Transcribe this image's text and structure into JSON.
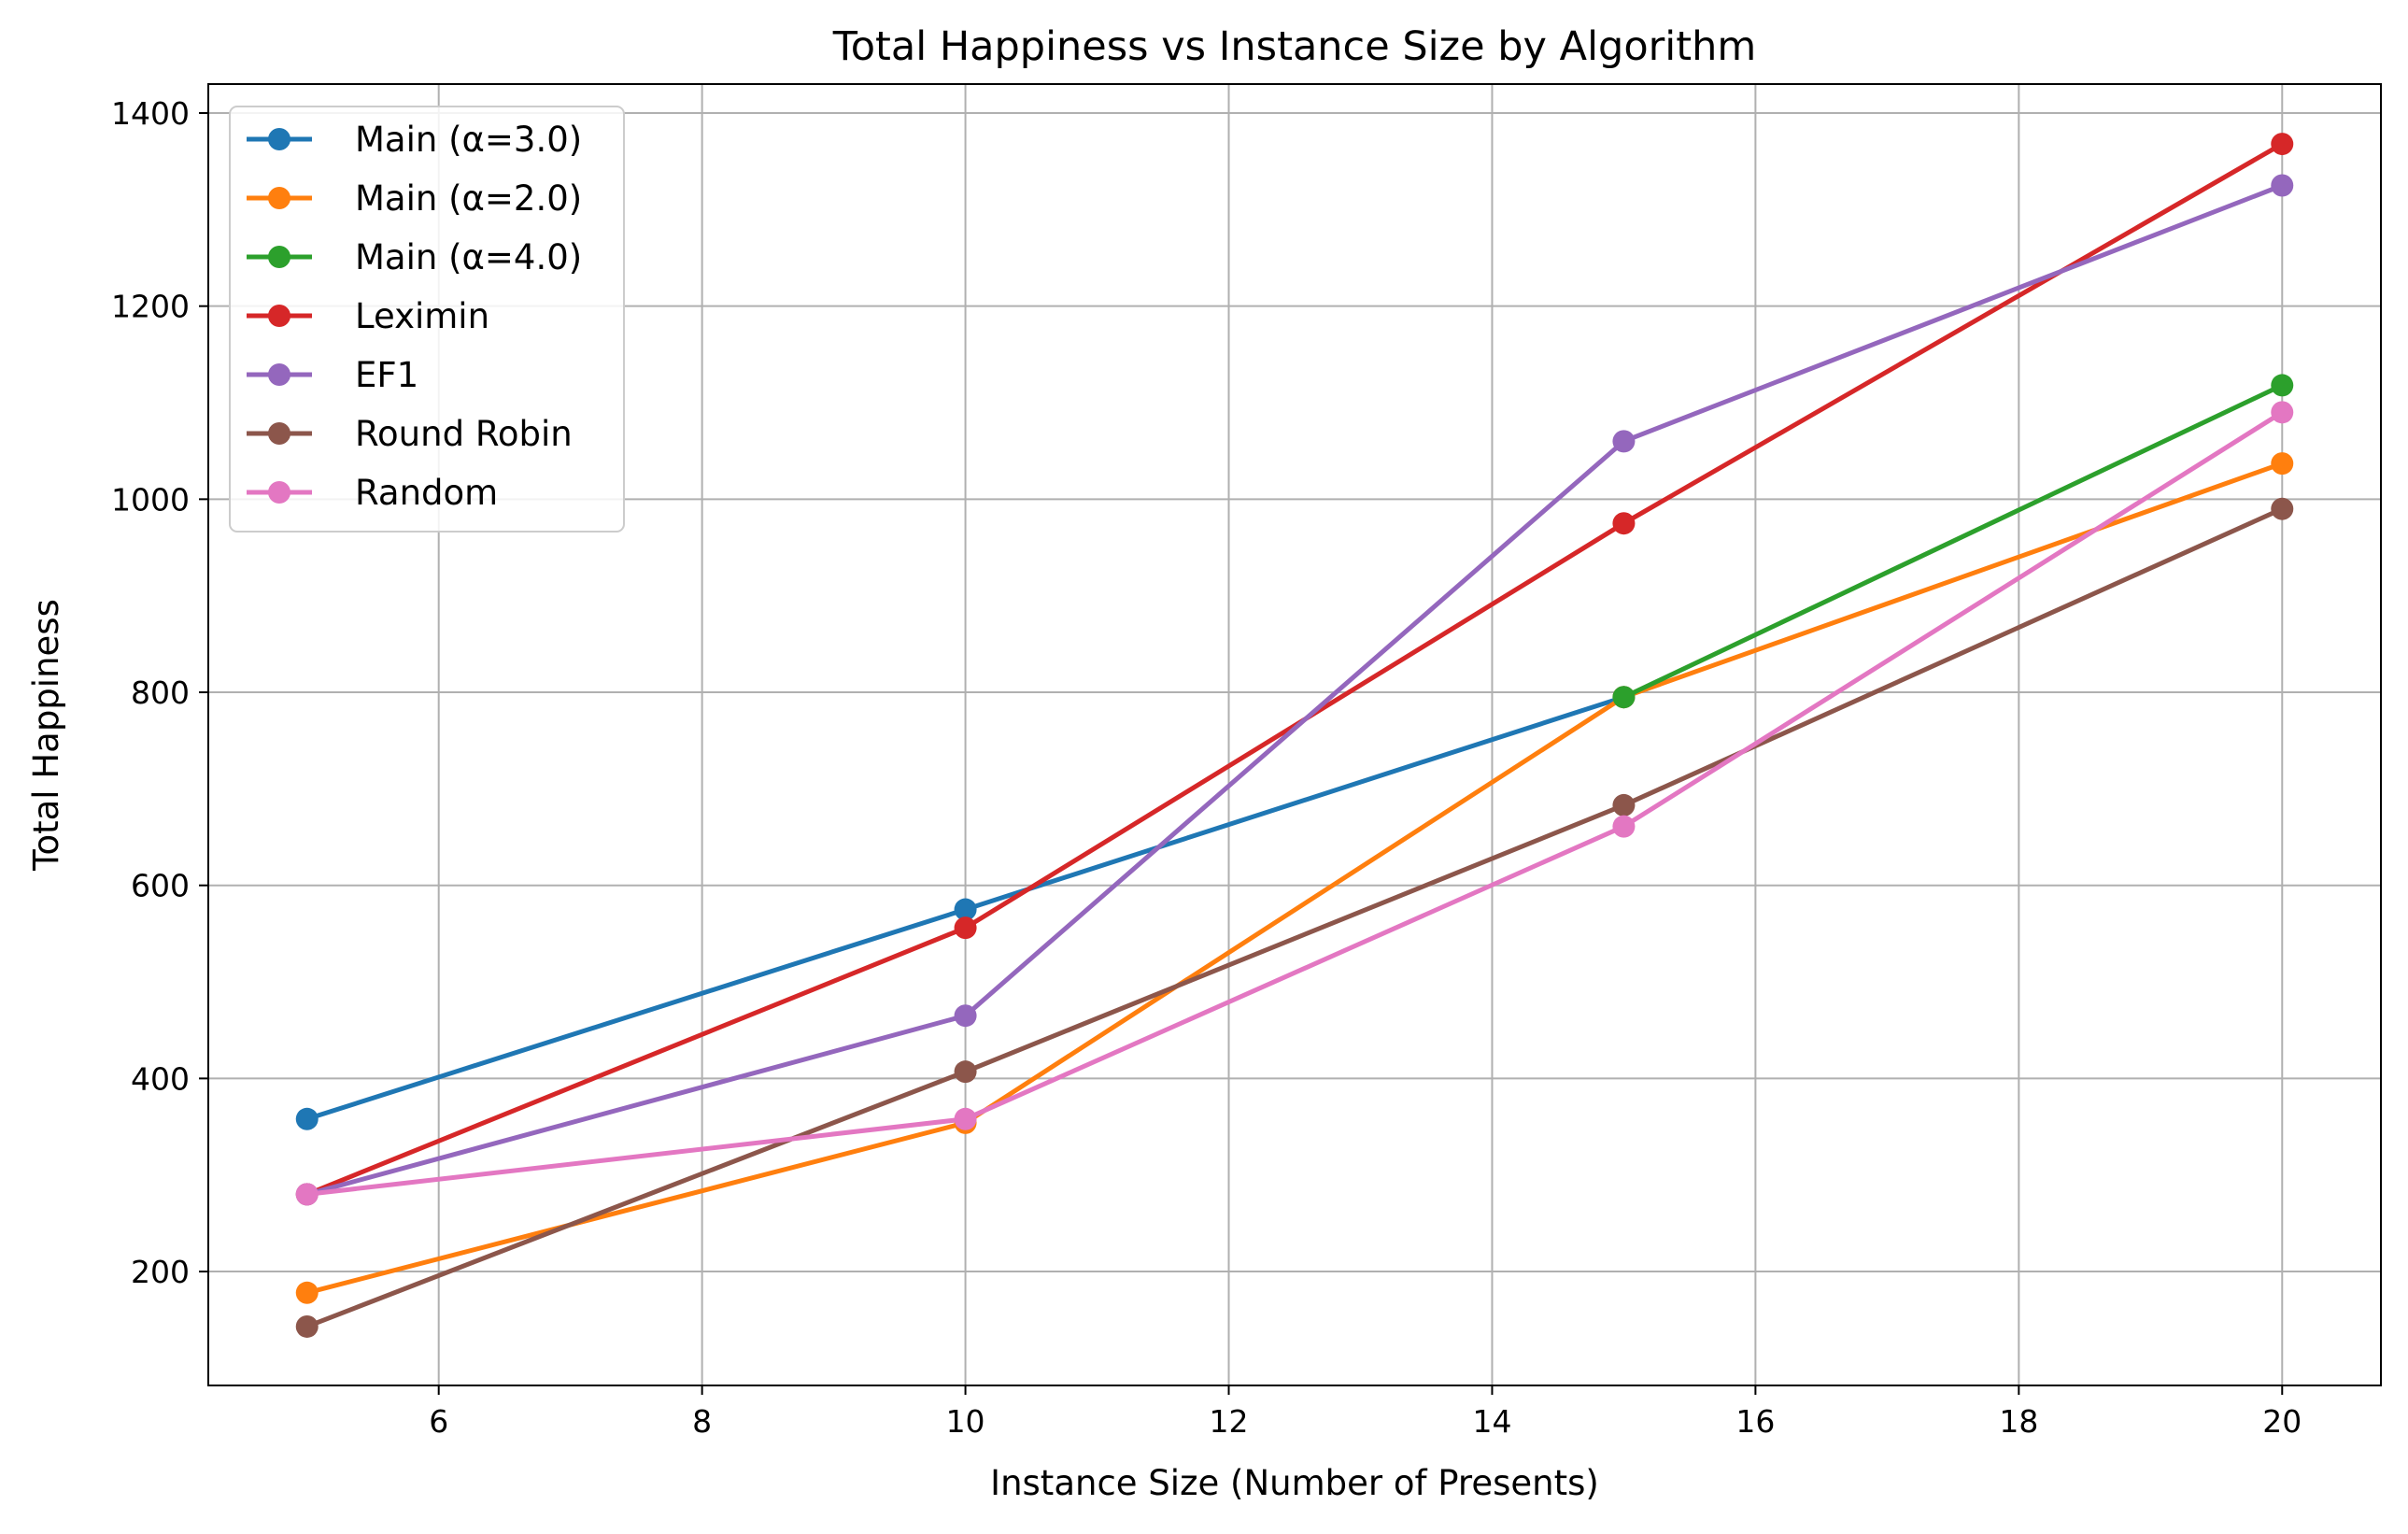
{
  "chart_data": {
    "type": "line",
    "title": "Total Happiness vs Instance Size by Algorithm",
    "xlabel": "Instance Size (Number of Presents)",
    "ylabel": "Total Happiness",
    "xlim": [
      4.25,
      20.75
    ],
    "ylim": [
      82,
      1430
    ],
    "xticks": [
      6,
      8,
      10,
      12,
      14,
      16,
      18,
      20
    ],
    "yticks": [
      200,
      400,
      600,
      800,
      1000,
      1200,
      1400
    ],
    "grid": true,
    "legend_position": "upper-left",
    "markers": "circle",
    "series": [
      {
        "name": "Main (α=3.0)",
        "color": "#1f77b4",
        "x": [
          5,
          10,
          15
        ],
        "y": [
          358,
          575,
          795
        ]
      },
      {
        "name": "Main (α=2.0)",
        "color": "#ff7f0e",
        "x": [
          5,
          10,
          15,
          20
        ],
        "y": [
          178,
          354,
          795,
          1037
        ]
      },
      {
        "name": "Main (α=4.0)",
        "color": "#2ca02c",
        "x": [
          15,
          20
        ],
        "y": [
          795,
          1118
        ]
      },
      {
        "name": "Leximin",
        "color": "#d62728",
        "x": [
          5,
          10,
          15,
          20
        ],
        "y": [
          280,
          556,
          975,
          1368
        ]
      },
      {
        "name": "EF1",
        "color": "#9467bd",
        "x": [
          5,
          10,
          15,
          20
        ],
        "y": [
          280,
          465,
          1060,
          1325
        ]
      },
      {
        "name": "Round Robin",
        "color": "#8c564b",
        "x": [
          5,
          10,
          15,
          20
        ],
        "y": [
          143,
          407,
          683,
          990
        ]
      },
      {
        "name": "Random",
        "color": "#e377c2",
        "x": [
          5,
          10,
          15,
          20
        ],
        "y": [
          280,
          358,
          661,
          1090
        ]
      }
    ]
  }
}
